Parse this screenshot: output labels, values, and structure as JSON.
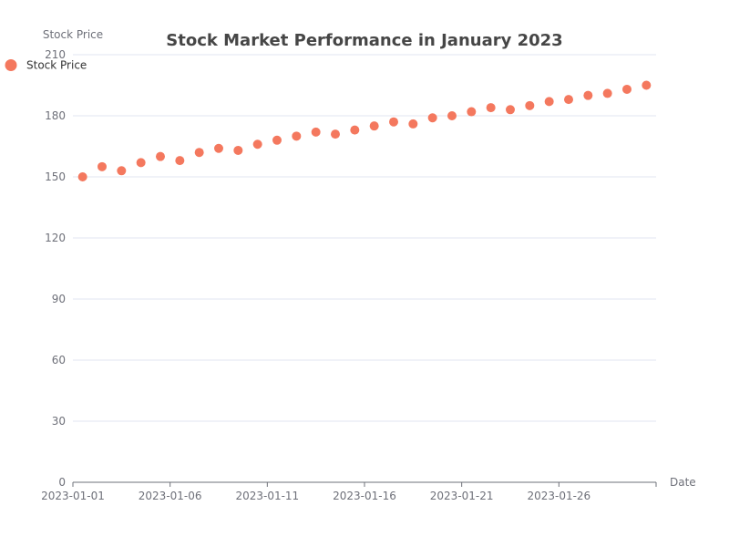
{
  "chart_data": {
    "type": "scatter",
    "title": "Stock Market Performance in January 2023",
    "xlabel": "Date",
    "ylabel": "Stock Price",
    "ylim": [
      0,
      210
    ],
    "yticks": [
      0,
      30,
      60,
      90,
      120,
      150,
      180,
      210
    ],
    "xtick_labels": [
      "2023-01-01",
      "2023-01-06",
      "2023-01-11",
      "2023-01-16",
      "2023-01-21",
      "2023-01-26"
    ],
    "grid": true,
    "legend_position": "top-left",
    "series": [
      {
        "name": "Stock Price",
        "color": "#f4785e",
        "points": [
          {
            "x": "2023-01-01",
            "y": 150
          },
          {
            "x": "2023-01-02",
            "y": 155
          },
          {
            "x": "2023-01-03",
            "y": 153
          },
          {
            "x": "2023-01-04",
            "y": 157
          },
          {
            "x": "2023-01-05",
            "y": 160
          },
          {
            "x": "2023-01-06",
            "y": 158
          },
          {
            "x": "2023-01-07",
            "y": 162
          },
          {
            "x": "2023-01-08",
            "y": 164
          },
          {
            "x": "2023-01-09",
            "y": 163
          },
          {
            "x": "2023-01-10",
            "y": 166
          },
          {
            "x": "2023-01-11",
            "y": 168
          },
          {
            "x": "2023-01-12",
            "y": 170
          },
          {
            "x": "2023-01-13",
            "y": 172
          },
          {
            "x": "2023-01-14",
            "y": 171
          },
          {
            "x": "2023-01-15",
            "y": 173
          },
          {
            "x": "2023-01-16",
            "y": 175
          },
          {
            "x": "2023-01-17",
            "y": 177
          },
          {
            "x": "2023-01-18",
            "y": 176
          },
          {
            "x": "2023-01-19",
            "y": 179
          },
          {
            "x": "2023-01-20",
            "y": 180
          },
          {
            "x": "2023-01-21",
            "y": 182
          },
          {
            "x": "2023-01-22",
            "y": 184
          },
          {
            "x": "2023-01-23",
            "y": 183
          },
          {
            "x": "2023-01-24",
            "y": 185
          },
          {
            "x": "2023-01-25",
            "y": 187
          },
          {
            "x": "2023-01-26",
            "y": 188
          },
          {
            "x": "2023-01-27",
            "y": 190
          },
          {
            "x": "2023-01-28",
            "y": 191
          },
          {
            "x": "2023-01-29",
            "y": 193
          },
          {
            "x": "2023-01-30",
            "y": 195
          }
        ]
      }
    ]
  }
}
